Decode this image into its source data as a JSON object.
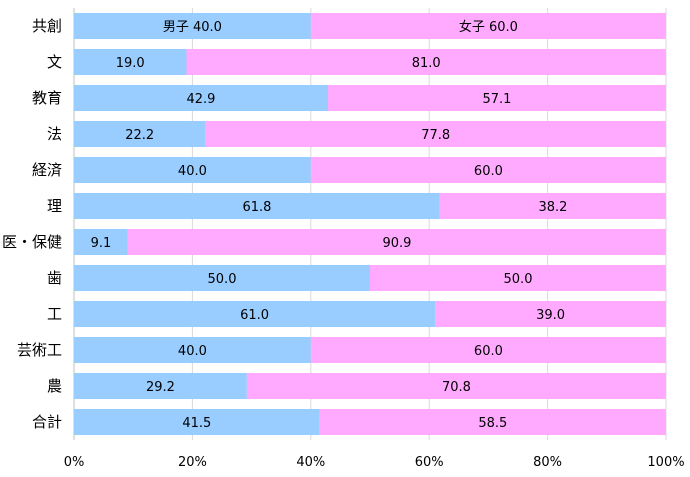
{
  "chart_data": {
    "type": "bar",
    "orientation": "horizontal",
    "stacked": "percent",
    "categories": [
      "共創",
      "文",
      "教育",
      "法",
      "経済",
      "理",
      "医・保健",
      "歯",
      "工",
      "芸術工",
      "農",
      "合計"
    ],
    "series": [
      {
        "name": "男子",
        "values": [
          40.0,
          19.0,
          42.9,
          22.2,
          40.0,
          61.8,
          9.1,
          50.0,
          61.0,
          40.0,
          29.2,
          41.5
        ]
      },
      {
        "name": "女子",
        "values": [
          60.0,
          81.0,
          57.1,
          77.8,
          60.0,
          38.2,
          90.9,
          50.0,
          39.0,
          60.0,
          70.8,
          58.5
        ]
      }
    ],
    "data_labels": [
      [
        "男子 40.0",
        "女子 60.0"
      ],
      [
        "19.0",
        "81.0"
      ],
      [
        "42.9",
        "57.1"
      ],
      [
        "22.2",
        "77.8"
      ],
      [
        "40.0",
        "60.0"
      ],
      [
        "61.8",
        "38.2"
      ],
      [
        "9.1",
        "90.9"
      ],
      [
        "50.0",
        "50.0"
      ],
      [
        "61.0",
        "39.0"
      ],
      [
        "40.0",
        "60.0"
      ],
      [
        "29.2",
        "70.8"
      ],
      [
        "41.5",
        "58.5"
      ]
    ],
    "xticks": [
      "0%",
      "20%",
      "40%",
      "60%",
      "80%",
      "100%"
    ],
    "xlim": [
      0,
      100
    ],
    "grid": true,
    "legend": "none",
    "colors": {
      "male": "#99ccff",
      "female": "#ffaaff"
    }
  }
}
